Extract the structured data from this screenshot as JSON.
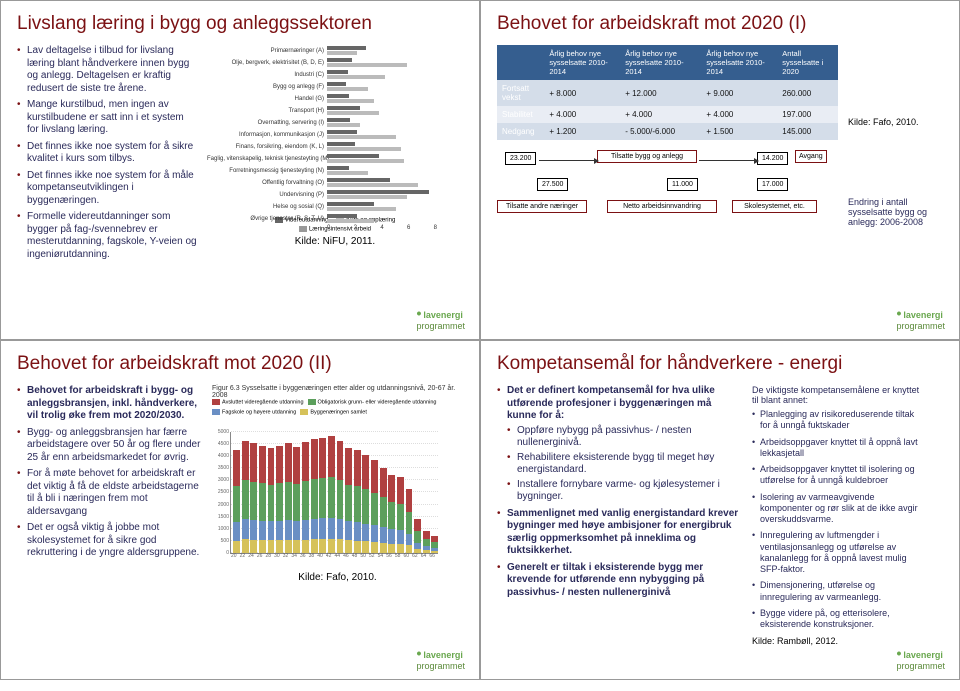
{
  "slide1": {
    "title": "Livslang læring i bygg og anleggssektoren",
    "bullets": [
      "Lav deltagelse i tilbud for livslang læring blant håndverkere innen bygg og anlegg. Deltagelsen er kraftig redusert de siste tre årene.",
      "Mange kurstilbud, men ingen av kurstilbudene er satt inn i et system for livslang læring.",
      "Det finnes ikke noe system for å sikre kvalitet i kurs som tilbys.",
      "Det finnes ikke noe system for å måle kompetanseutviklingen i byggenæringen.",
      "Formelle videreutdanninger som bygger på fag-/svennebrev er mesterutdanning, fagskole, Y-veien og ingeniørutdanning."
    ],
    "chart": {
      "type": "grouped-horizontal-bar",
      "categories": [
        "Primærnæringer (A)",
        "Olje, bergverk, elektrisitet (B, D, E)",
        "Industri (C)",
        "Bygg og anlegg (F)",
        "Handel (G)",
        "Transport (H)",
        "Overnatting, servering (I)",
        "Informasjon, kommunikasjon (J)",
        "Finans, forsikring, eiendom (K, L)",
        "Faglig, vitenskapelig, teknisk tjenesteyting (M)",
        "Forretningsmessig tjenesteyting (N)",
        "Offentlig forvaltning (O)",
        "Undervisning (P)",
        "Helse og sosial (Q)",
        "Øvrige tjenester (R, S, T, U)"
      ],
      "series": [
        {
          "name": "Videreutdanning",
          "color": "#666666",
          "values": [
            2.8,
            1.8,
            1.5,
            1.4,
            1.6,
            2.4,
            1.7,
            2.2,
            2.0,
            3.8,
            1.6,
            4.6,
            7.4,
            3.4,
            2.2
          ]
        },
        {
          "name": "Kurs og opplæring",
          "color": "#bbbbbb",
          "values": [
            2.2,
            5.8,
            4.2,
            3.0,
            3.4,
            3.8,
            2.4,
            5.0,
            5.4,
            5.6,
            3.0,
            6.6,
            5.8,
            5.0,
            3.4
          ]
        }
      ],
      "xlim": [
        0,
        8
      ],
      "xtick_step": 2,
      "legend2": "Læringsintensivt arbeid",
      "source": "Kilde: NiFU, 2011."
    }
  },
  "slide2": {
    "title": "Behovet for arbeidskraft mot 2020 (I)",
    "table": {
      "headers": [
        "",
        "Årlig behov nye sysselsatte 2010-2014",
        "Årlig behov nye sysselsatte 2010-2014",
        "Årlig behov nye sysselsatte 2010-2014",
        "Antall sysselsatte i 2020"
      ],
      "rows": [
        [
          "Fortsatt vekst",
          "+ 8.000",
          "+ 12.000",
          "+ 9.000",
          "260.000"
        ],
        [
          "Stabilitet",
          "+ 4.000",
          "+ 4.000",
          "+ 4.000",
          "197.000"
        ],
        [
          "Nedgang",
          "+ 1.200",
          "- 5.000/-6.000",
          "+ 1.500",
          "145.000"
        ]
      ],
      "row_bg": [
        "#d4dde9",
        "#e9edf4",
        "#d4dde9"
      ]
    },
    "flow": {
      "vals": {
        "v1": "23.200",
        "v2": "27.500",
        "v3": "11.000",
        "v4": "14.200",
        "v5": "17.000"
      },
      "lbls": {
        "l1": "Tilsatte andre næringer",
        "l2": "Tilsatte bygg og anlegg",
        "l3": "Netto arbeidsinnvandring",
        "l4": "Avgang",
        "l5": "Skolesystemet, etc."
      },
      "val_border": "#000000",
      "val_bg": "#ffffff",
      "lbl_border": "#7b1113"
    },
    "source": "Kilde: Fafo, 2010.",
    "sidetext": "Endring i antall sysselsatte bygg og anlegg: 2006-2008"
  },
  "slide3": {
    "title": "Behovet for arbeidskraft mot 2020 (II)",
    "bullets": [
      "Behovet for arbeidskraft i bygg- og anleggsbransjen, inkl. håndverkere, vil trolig øke frem mot 2020/2030.",
      "Bygg- og anleggsbransjen har færre arbeidstagere over 50 år og flere under 25 år enn arbeidsmarkedet for øvrig.",
      "For å møte behovet for arbeidskraft er det viktig å få de eldste arbeidstagerne til å bli i næringen frem mot aldersavgang",
      "Det er også viktig å jobbe mot skolesystemet for å sikre god rekruttering i de yngre aldersgruppene."
    ],
    "chart": {
      "type": "stacked-bar",
      "title": "Figur 6.3 Sysselsatte i byggenæringen etter alder og utdanningsnivå, 20-67 år. 2008",
      "x_values": [
        20,
        22,
        24,
        26,
        28,
        30,
        32,
        34,
        36,
        38,
        40,
        42,
        44,
        46,
        48,
        50,
        52,
        54,
        56,
        58,
        60,
        62,
        64,
        66
      ],
      "series": [
        {
          "name": "Avsluttet videregående utdanning",
          "color": "#b04040"
        },
        {
          "name": "Obligatorisk grunn- eller videregående utdanning",
          "color": "#5c9f5c"
        },
        {
          "name": "Fagskole og høyere utdanning",
          "color": "#6a8fc4"
        },
        {
          "name": "Byggenæringen samlet",
          "color": "#d6c25a"
        }
      ],
      "ylim": [
        0,
        5000
      ],
      "ytick_step": 500,
      "heights": [
        4200,
        4600,
        4500,
        4400,
        4300,
        4400,
        4500,
        4350,
        4550,
        4650,
        4700,
        4800,
        4600,
        4300,
        4200,
        4000,
        3800,
        3500,
        3200,
        3100,
        2600,
        1400,
        900,
        700
      ],
      "seg_fracs": [
        0.35,
        0.35,
        0.18,
        0.12
      ]
    },
    "source": "Kilde: Fafo, 2010."
  },
  "slide4": {
    "title": "Kompetansemål for håndverkere - energi",
    "left_bullets": [
      {
        "text": "Det er definert kompetansemål for hva ulike utførende profesjoner i byggenæringen må kunne for å:",
        "bold": true,
        "sub": [
          "Oppføre nybygg på passivhus- / nesten nullenerginivå.",
          "Rehabilitere eksisterende bygg til meget høy energistandard.",
          "Installere fornybare varme- og kjølesystemer i bygninger."
        ]
      },
      {
        "text": "Sammenlignet med vanlig energistandard krever bygninger med høye ambisjoner for  energibruk særlig oppmerksomhet på inneklima og fuktsikkerhet.",
        "bold": true
      },
      {
        "text": "Generelt er tiltak i eksisterende bygg mer krevende for utførende enn nybygging på passivhus- / nesten nullenerginivå",
        "bold": true
      }
    ],
    "right_heading": "De viktigste kompetansemålene er knyttet til blant annet:",
    "right_bullets": [
      "Planlegging av risikoreduserende tiltak for å unngå fuktskader",
      "Arbeidsoppgaver knyttet til å oppnå lavt lekkasjetall",
      "Arbeidsoppgaver knyttet til isolering og utførelse for å unngå kuldebroer",
      "Isolering av varmeavgivende komponenter og rør slik at de ikke avgir overskuddsvarme.",
      "Innregulering av luftmengder i ventilasjonsanlegg og utførelse av kanalanlegg for å oppnå lavest mulig SFP-faktor.",
      "Dimensjonering, utførelse og innregulering av varmeanlegg.",
      "Bygge videre på, og etterisolere, eksisterende konstruksjoner."
    ],
    "source": "Kilde: Rambøll, 2012."
  },
  "logo_text": "lavenergi\nprogrammet"
}
